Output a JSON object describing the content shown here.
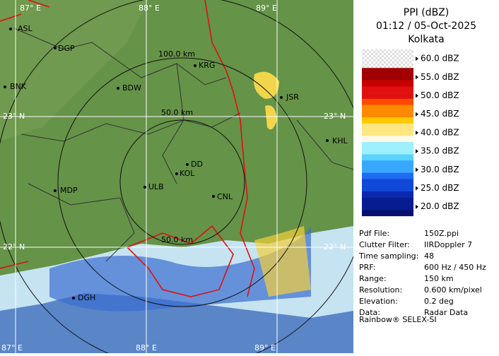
{
  "map": {
    "grid_labels": [
      "87° E",
      "88° E",
      "89° E",
      "23° N",
      "23° N",
      "22° N",
      "22° N",
      "87° E",
      "88° E",
      "89° E"
    ],
    "range_labels": [
      "100.0 km",
      "50.0 km",
      "50.0 km"
    ],
    "places": [
      "ASL",
      "DGP",
      "BNK",
      "BDW",
      "KRG",
      "JSR",
      "KHL",
      "MDP",
      "DD",
      "KOL",
      "ULB",
      "CNL",
      "DGH"
    ]
  },
  "panel": {
    "title": "PPI (dBZ)",
    "time": "01:12 / 05-Oct-2025",
    "station": "Kolkata",
    "legend": [
      "60.0 dBZ",
      "55.0 dBZ",
      "50.0 dBZ",
      "45.0 dBZ",
      "40.0 dBZ",
      "35.0 dBZ",
      "30.0 dBZ",
      "25.0 dBZ",
      "20.0 dBZ"
    ],
    "info": [
      {
        "label": "Pdf File:",
        "value": "150Z.ppi"
      },
      {
        "label": "Clutter Filter:",
        "value": "IIRDoppler 7"
      },
      {
        "label": "Time sampling:",
        "value": "48"
      },
      {
        "label": "PRF:",
        "value": "600 Hz / 450 Hz"
      },
      {
        "label": "Range:",
        "value": "150 km"
      },
      {
        "label": "Resolution:",
        "value": "0.600 km/pixel"
      },
      {
        "label": "Elevation:",
        "value": "0.2 deg"
      },
      {
        "label": "Data:",
        "value": "Radar Data"
      }
    ],
    "footer": "Rainbow® SELEX-SI"
  }
}
